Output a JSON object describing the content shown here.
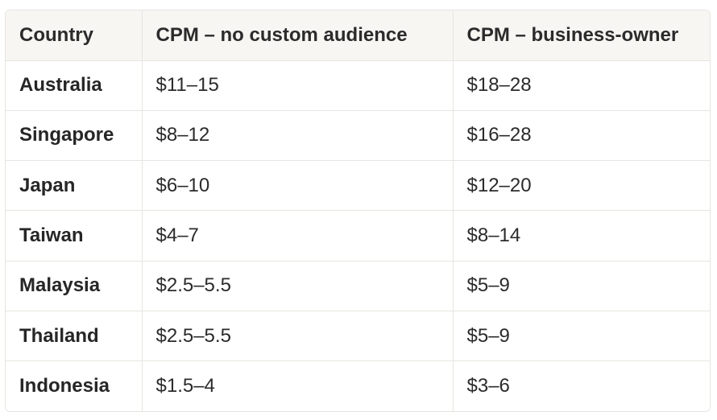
{
  "table": {
    "headers": [
      "Country",
      "CPM – no custom audience",
      "CPM – business-owner"
    ],
    "rows": [
      {
        "country": "Australia",
        "no_custom": "$11–15",
        "business_owner": "$18–28"
      },
      {
        "country": "Singapore",
        "no_custom": "$8–12",
        "business_owner": "$16–28"
      },
      {
        "country": "Japan",
        "no_custom": "$6–10",
        "business_owner": "$12–20"
      },
      {
        "country": "Taiwan",
        "no_custom": "$4–7",
        "business_owner": "$8–14"
      },
      {
        "country": "Malaysia",
        "no_custom": "$2.5–5.5",
        "business_owner": "$5–9"
      },
      {
        "country": "Thailand",
        "no_custom": "$2.5–5.5",
        "business_owner": "$5–9"
      },
      {
        "country": "Indonesia",
        "no_custom": "$1.5–4",
        "business_owner": "$3–6"
      }
    ]
  }
}
